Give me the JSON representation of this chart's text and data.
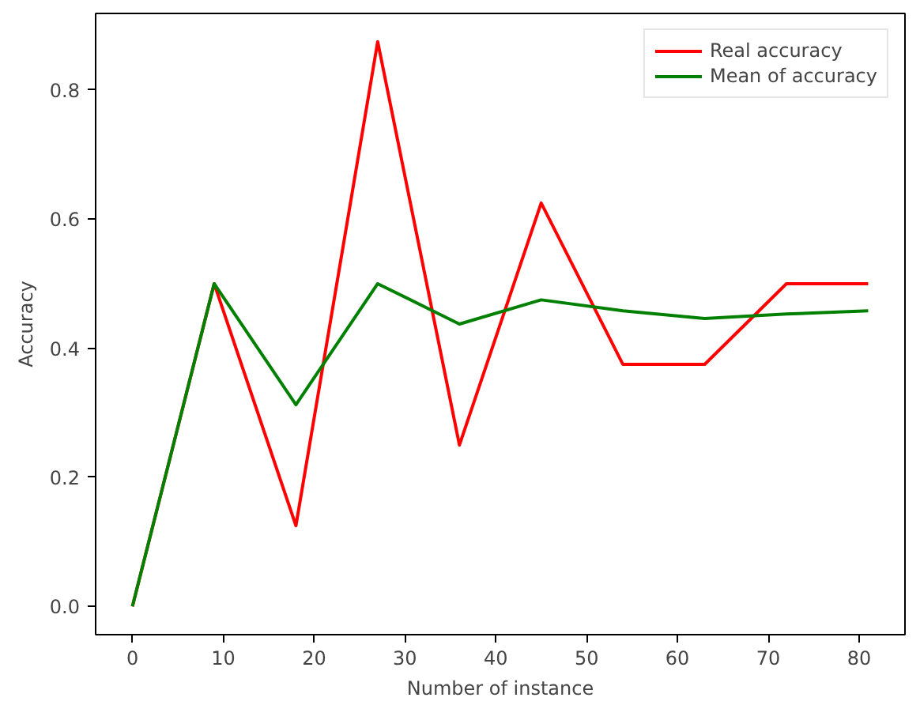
{
  "chart_data": {
    "type": "line",
    "xlabel": "Number of instance",
    "ylabel": "Accuracy",
    "x": [
      0,
      9,
      18,
      27,
      36,
      45,
      54,
      63,
      72,
      81
    ],
    "series": [
      {
        "name": "Real accuracy",
        "color": "#ff0000",
        "values": [
          0,
          0.5,
          0.125,
          0.875,
          0.25,
          0.625,
          0.375,
          0.375,
          0.5,
          0.5
        ]
      },
      {
        "name": "Mean of accuracy",
        "color": "#008000",
        "values": [
          0,
          0.5,
          0.3125,
          0.5,
          0.4375,
          0.475,
          0.458,
          0.446,
          0.453,
          0.458
        ]
      }
    ],
    "xlim": [
      -4.05,
      85.05
    ],
    "ylim": [
      -0.04375,
      0.91875
    ],
    "xticks": [
      0,
      10,
      20,
      30,
      40,
      50,
      60,
      70,
      80
    ],
    "yticks": [
      {
        "value": 0,
        "label": "0.0"
      },
      {
        "value": 0.2,
        "label": "0.2"
      },
      {
        "value": 0.4,
        "label": "0.4"
      },
      {
        "value": 0.6,
        "label": "0.6"
      },
      {
        "value": 0.8,
        "label": "0.8"
      }
    ],
    "legend": "top right",
    "grid": false,
    "line_style": "solid",
    "marker": "none"
  }
}
